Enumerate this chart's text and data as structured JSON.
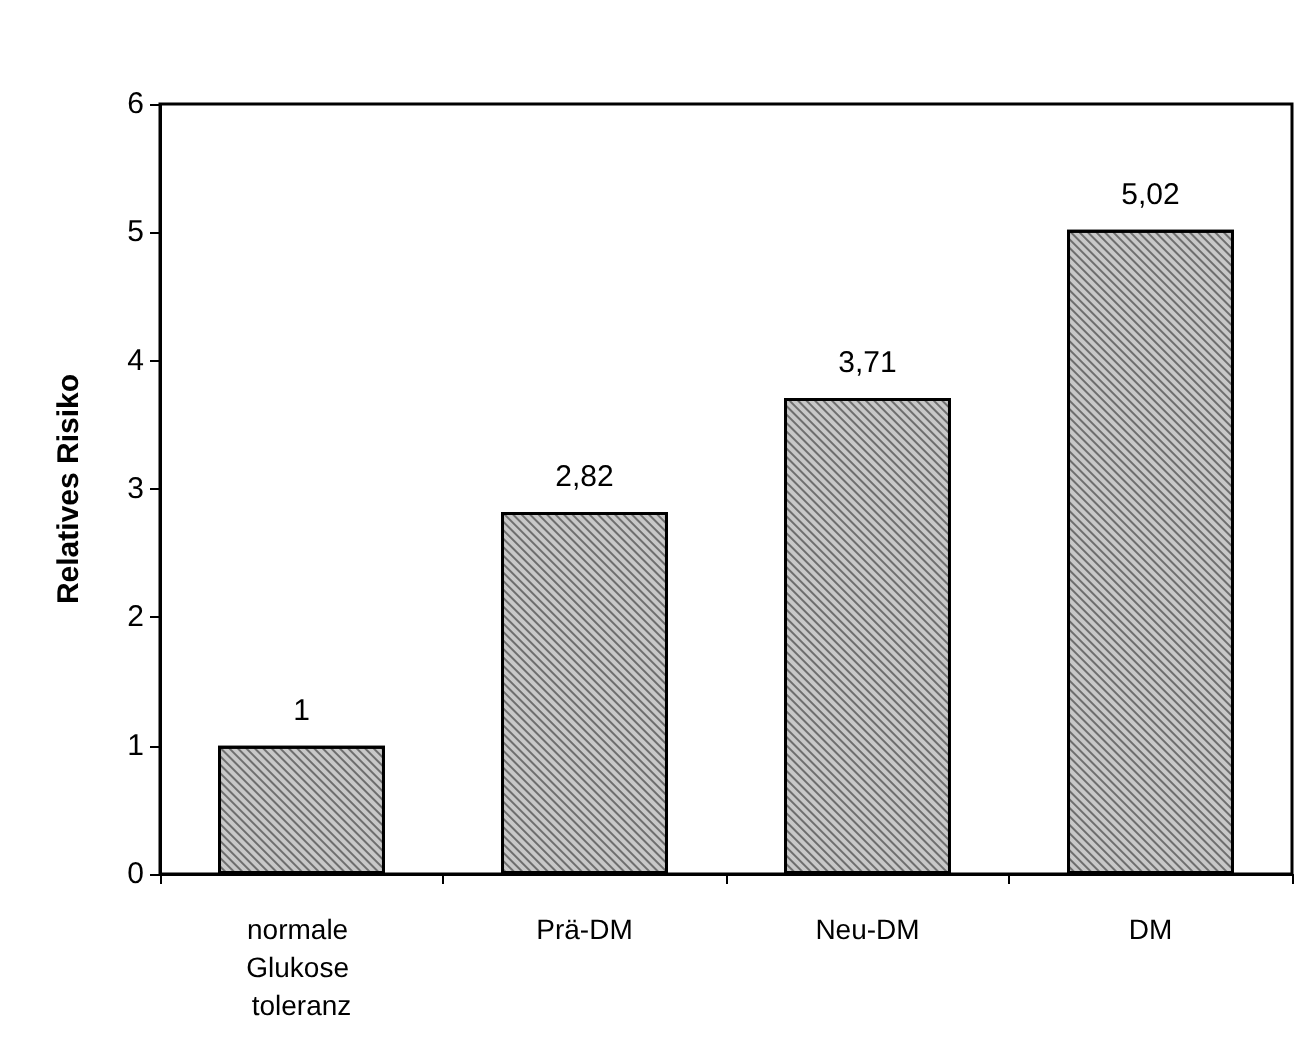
{
  "chart_data": {
    "type": "bar",
    "ylabel": "Relatives Risiko",
    "categories": [
      "normale Glukose toleranz",
      "Prä-DM",
      "Neu-DM",
      "DM"
    ],
    "values": [
      1,
      2.82,
      3.71,
      5.02
    ],
    "value_labels": [
      "1",
      "2,82",
      "3,71",
      "5,02"
    ],
    "color": "#c8c8c8",
    "ylim": [
      0,
      6
    ],
    "yticks": [
      0,
      1,
      2,
      3,
      4,
      5,
      6
    ],
    "grid": false
  }
}
